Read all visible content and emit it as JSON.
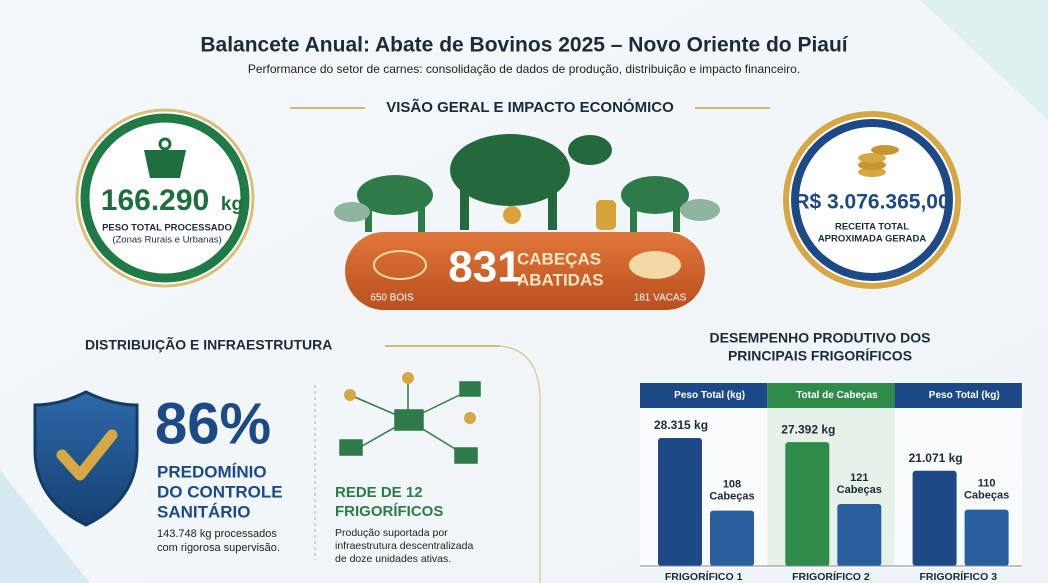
{
  "header": {
    "title": "Balancete Anual: Abate de Bovinos 2025 – Novo Oriente do Piauí",
    "subtitle": "Performance do setor de carnes: consolidação de dados de produção, distribuição e impacto financeiro."
  },
  "overview": {
    "heading": "VISÃO GERAL E IMPACTO ECONÓMICO",
    "weight": {
      "value": "166.290",
      "unit": "kg",
      "label": "PESO TOTAL PROCESSADO",
      "note": "(Zonas Rurais e Urbanas)"
    },
    "heads": {
      "total": "831",
      "label": [
        "CABEÇAS",
        "ABATIDAS"
      ],
      "bois": "650 BOIS",
      "vacas": "181 VACAS"
    },
    "revenue": {
      "value": "R$ 3.076.365,00",
      "label": [
        "RECEITA TOTAL",
        "APROXIMADA GERADA"
      ]
    }
  },
  "distribution": {
    "heading": "DISTRIBUIÇÃO E INFRAESTRUTURA",
    "percent": "86%",
    "label": [
      "PREDOMÍNIO",
      "DO CONTROLE",
      "SANITÁRIO"
    ],
    "note": [
      "143.748 kg processados",
      "com rigorosa supervisão."
    ]
  },
  "network": {
    "title": [
      "REDE DE 12",
      "FRIGORÍFICOS"
    ],
    "text": [
      "Produção suportada por",
      "infraestrutura descentralizada",
      "de doze unidades ativas."
    ]
  },
  "chart_data": {
    "type": "bar",
    "title": [
      "DESEMPENHO PRODUTIVO DOS",
      "PRINCIPAIS FRIGORÍFICOS"
    ],
    "headers": [
      "Peso Total (kg)",
      "Total de Cabeças",
      "Peso Total (kg)"
    ],
    "header_colors": [
      "#1d4a86",
      "#2e8b4a",
      "#1d4a86"
    ],
    "categories": [
      "FRIGORÍFICO 1",
      "FRIGORÍFICO 2",
      "FRIGORÍFICO 3"
    ],
    "series": [
      {
        "colors": [
          "#1d4a86",
          "#2e8b4a",
          "#1d4a86"
        ],
        "values": [
          28315,
          27392,
          21071
        ],
        "value_labels": [
          "28.315 kg",
          "27.392 kg",
          "21.071 kg"
        ]
      },
      {
        "color": "#2a5f9e",
        "values": [
          108,
          121,
          110
        ],
        "value_labels": [
          [
            "108",
            "Cabeças"
          ],
          [
            "121",
            "Cabeças"
          ],
          [
            "110",
            "Cabeças"
          ]
        ]
      }
    ]
  }
}
